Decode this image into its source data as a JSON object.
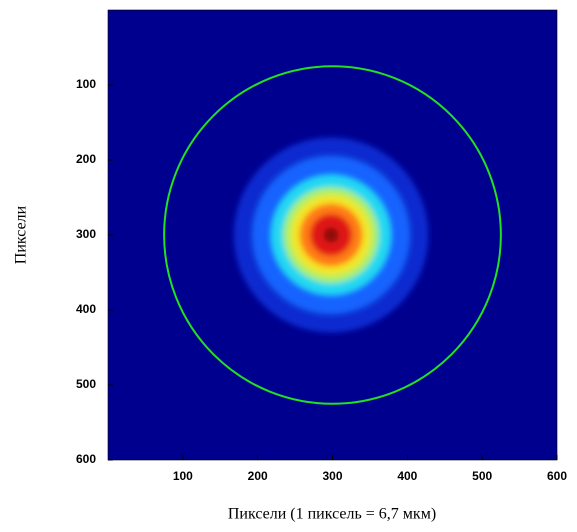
{
  "chart_data": {
    "type": "heatmap",
    "x_label": "Пиксели (1 пиксель = 6,7 мкм)",
    "y_label": "Пиксели",
    "xlim": [
      0,
      600
    ],
    "ylim": [
      0,
      600
    ],
    "y_inverted": true,
    "xticks": [
      100,
      200,
      300,
      400,
      500,
      600
    ],
    "yticks": [
      100,
      200,
      300,
      400,
      500,
      600
    ],
    "background": "#00008f",
    "beam_center": [
      298,
      300
    ],
    "contours": [
      {
        "radius": 130,
        "color": "#0a2ad0"
      },
      {
        "radius": 105,
        "color": "#1464ff"
      },
      {
        "radius": 80,
        "color": "#22d8f2"
      },
      {
        "radius": 64,
        "color": "#a8f06a"
      },
      {
        "radius": 54,
        "color": "#f2e628"
      },
      {
        "radius": 42,
        "color": "#ff7c12"
      },
      {
        "radius": 28,
        "color": "#e01414"
      },
      {
        "radius": 10,
        "color": "#8a1010"
      }
    ],
    "circle": {
      "center": [
        300,
        300
      ],
      "radius": 225,
      "color": "#22e022"
    }
  }
}
